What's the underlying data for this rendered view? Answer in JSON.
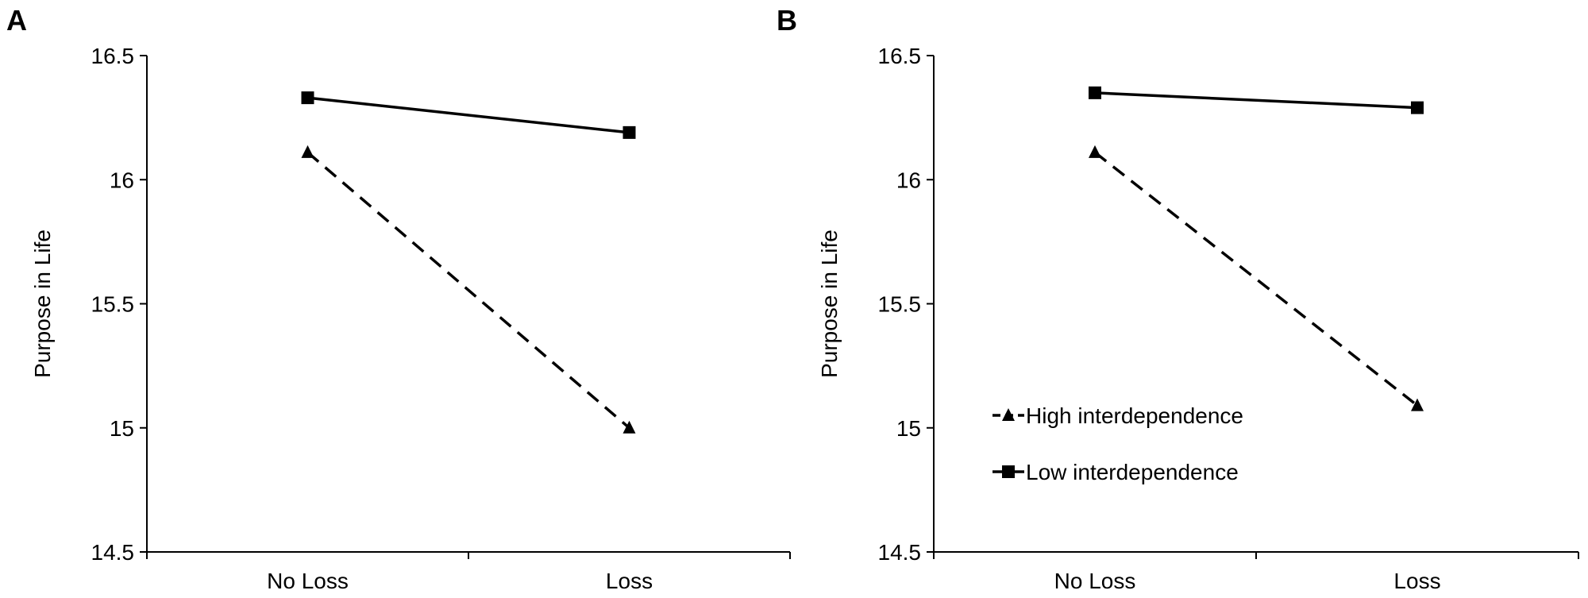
{
  "chart_data": [
    {
      "type": "line",
      "panel": "A",
      "ylabel": "Purpose in Life",
      "xlabel": "",
      "categories": [
        "No Loss",
        "Loss"
      ],
      "ylim": [
        14.5,
        16.5
      ],
      "yticks": [
        "14.5",
        "15",
        "15.5",
        "16",
        "16.5"
      ],
      "grid": false,
      "legend": "none",
      "series": [
        {
          "name": "High interdependence",
          "marker": "triangle",
          "style": "dashed",
          "values": [
            16.11,
            15.0
          ]
        },
        {
          "name": "Low interdependence",
          "marker": "square",
          "style": "solid",
          "values": [
            16.33,
            16.19
          ]
        }
      ]
    },
    {
      "type": "line",
      "panel": "B",
      "ylabel": "Purpose in Life",
      "xlabel": "",
      "categories": [
        "No Loss",
        "Loss"
      ],
      "ylim": [
        14.5,
        16.5
      ],
      "yticks": [
        "14.5",
        "15",
        "15.5",
        "16",
        "16.5"
      ],
      "grid": false,
      "legend": "center-left",
      "series": [
        {
          "name": "High interdependence",
          "marker": "triangle",
          "style": "dashed",
          "values": [
            16.11,
            15.09
          ]
        },
        {
          "name": "Low interdependence",
          "marker": "square",
          "style": "solid",
          "values": [
            16.35,
            16.29
          ]
        }
      ]
    }
  ]
}
